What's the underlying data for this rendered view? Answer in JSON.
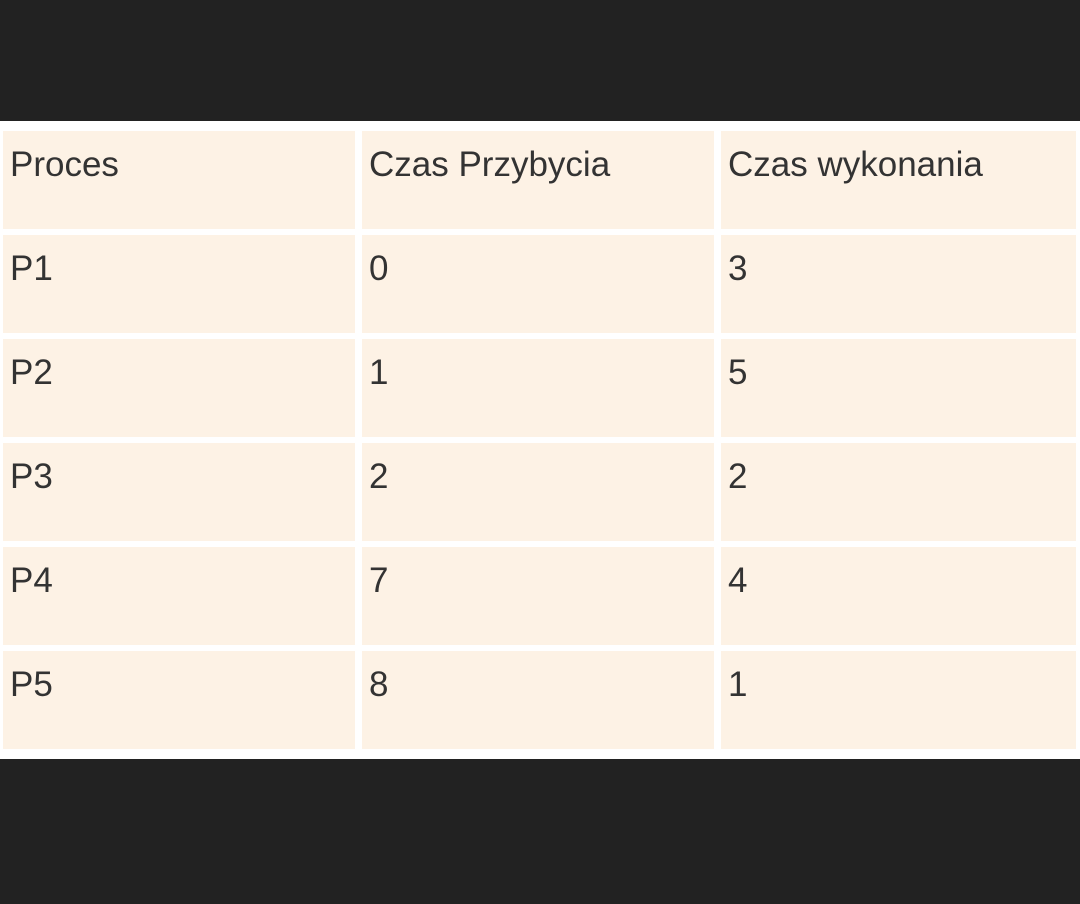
{
  "table": {
    "headers": [
      "Proces",
      "Czas Przybycia",
      "Czas wykonania"
    ],
    "rows": [
      [
        "P1",
        "0",
        "3"
      ],
      [
        "P2",
        "1",
        "5"
      ],
      [
        "P3",
        "2",
        "2"
      ],
      [
        "P4",
        "7",
        "4"
      ],
      [
        "P5",
        "8",
        "1"
      ]
    ]
  },
  "colors": {
    "background": "#222222",
    "cell_fill": "#fdf2e5",
    "grid_lines": "#ffffff",
    "text": "#333333"
  }
}
